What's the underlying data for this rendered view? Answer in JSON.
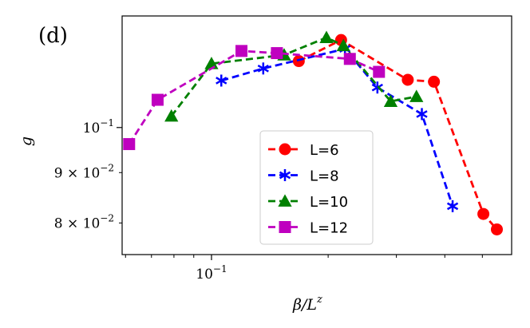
{
  "chart_data": {
    "type": "line",
    "panel_label": "(d)",
    "xlabel": "β/L^z",
    "ylabel": "g",
    "xscale": "log",
    "yscale": "log",
    "xlim": [
      0.0588,
      0.595
    ],
    "ylim": [
      0.0743,
      0.1298
    ],
    "x_tick_labels": [
      {
        "value": 0.1,
        "label": "10^-1"
      }
    ],
    "y_tick_labels": [
      {
        "value": 0.1,
        "label": "10^-1"
      },
      {
        "value": 0.09,
        "label": "9 × 10^-2"
      },
      {
        "value": 0.08,
        "label": "8 × 10^-2"
      }
    ],
    "legend_position": "lower center",
    "grid": false,
    "series": [
      {
        "name": "L=6",
        "color": "#ff0000",
        "marker": "circle",
        "x": [
          0.168,
          0.216,
          0.321,
          0.375,
          0.503,
          0.545
        ],
        "y": [
          0.1168,
          0.1227,
          0.1118,
          0.1113,
          0.0817,
          0.0788
        ]
      },
      {
        "name": "L=8",
        "color": "#0000ff",
        "marker": "asterisk",
        "x": [
          0.106,
          0.136,
          0.221,
          0.268,
          0.349,
          0.419
        ],
        "y": [
          0.1116,
          0.1148,
          0.1202,
          0.1098,
          0.1032,
          0.0832
        ]
      },
      {
        "name": "L=10",
        "color": "#008000",
        "marker": "triangle",
        "x": [
          0.0788,
          0.1,
          0.154,
          0.198,
          0.219,
          0.29,
          0.338
        ],
        "y": [
          0.1027,
          0.1161,
          0.1185,
          0.1234,
          0.1211,
          0.1063,
          0.1075
        ]
      },
      {
        "name": "L=12",
        "color": "#bf00bf",
        "marker": "square",
        "x": [
          0.0613,
          0.0726,
          0.1195,
          0.1475,
          0.2275,
          0.2705
        ],
        "y": [
          0.0962,
          0.1067,
          0.1196,
          0.119,
          0.1174,
          0.1139
        ]
      }
    ]
  }
}
